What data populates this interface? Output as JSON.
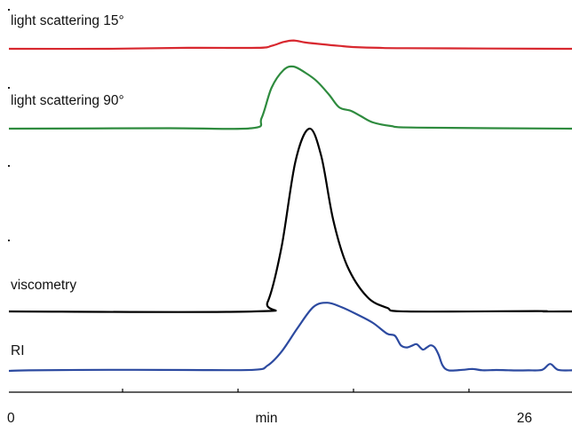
{
  "chart_data": {
    "type": "line",
    "title": "",
    "xlabel": "min",
    "ylabel": "",
    "xlim": [
      0,
      28.3
    ],
    "x_ticks": [
      {
        "value": 0,
        "label": "0"
      },
      {
        "value": 26,
        "label": "26"
      }
    ],
    "grid": false,
    "legend": "none",
    "series": [
      {
        "name": "light scattering 15°",
        "color": "#d8282f",
        "points": [
          [
            0,
            0
          ],
          [
            5,
            0
          ],
          [
            9,
            0.02
          ],
          [
            12.5,
            0.02
          ],
          [
            13.2,
            0.06
          ],
          [
            13.8,
            0.14
          ],
          [
            14.3,
            0.17
          ],
          [
            14.9,
            0.13
          ],
          [
            15.8,
            0.09
          ],
          [
            16.6,
            0.06
          ],
          [
            17.4,
            0.035
          ],
          [
            18.6,
            0.02
          ],
          [
            20,
            0.012
          ],
          [
            28.3,
            0
          ]
        ]
      },
      {
        "name": "light scattering 90°",
        "color": "#2e8b3e",
        "points": [
          [
            0,
            0
          ],
          [
            8,
            0.005
          ],
          [
            12.2,
            0.005
          ],
          [
            12.7,
            0.12
          ],
          [
            13.2,
            0.46
          ],
          [
            13.8,
            0.66
          ],
          [
            14.3,
            0.7
          ],
          [
            14.9,
            0.63
          ],
          [
            15.5,
            0.53
          ],
          [
            16.1,
            0.38
          ],
          [
            16.6,
            0.24
          ],
          [
            17.2,
            0.2
          ],
          [
            17.7,
            0.14
          ],
          [
            18.3,
            0.07
          ],
          [
            19.2,
            0.03
          ],
          [
            20.5,
            0.012
          ],
          [
            28.3,
            0
          ]
        ]
      },
      {
        "name": "viscometry",
        "color": "#000000",
        "points": [
          [
            0,
            0
          ],
          [
            12.3,
            0
          ],
          [
            13.0,
            0.05
          ],
          [
            13.7,
            0.35
          ],
          [
            14.4,
            0.82
          ],
          [
            15.1,
            1
          ],
          [
            15.7,
            0.85
          ],
          [
            16.3,
            0.5
          ],
          [
            17,
            0.25
          ],
          [
            18,
            0.08
          ],
          [
            19,
            0.02
          ],
          [
            20,
            0
          ],
          [
            26.5,
            0.002
          ],
          [
            26.9,
            0
          ],
          [
            28.3,
            0
          ]
        ]
      },
      {
        "name": "RI",
        "color": "#2c4aa0",
        "points": [
          [
            0,
            0
          ],
          [
            1,
            0.005
          ],
          [
            5,
            0.01
          ],
          [
            9,
            0.008
          ],
          [
            12.3,
            0.01
          ],
          [
            13,
            0.05
          ],
          [
            13.7,
            0.18
          ],
          [
            14.5,
            0.4
          ],
          [
            15.3,
            0.6
          ],
          [
            16,
            0.64
          ],
          [
            16.7,
            0.6
          ],
          [
            17.5,
            0.53
          ],
          [
            18.3,
            0.45
          ],
          [
            19,
            0.35
          ],
          [
            19.4,
            0.33
          ],
          [
            19.7,
            0.24
          ],
          [
            20,
            0.22
          ],
          [
            20.3,
            0.24
          ],
          [
            20.5,
            0.25
          ],
          [
            20.8,
            0.2
          ],
          [
            21,
            0.22
          ],
          [
            21.2,
            0.24
          ],
          [
            21.4,
            0.22
          ],
          [
            21.6,
            0.15
          ],
          [
            21.8,
            0.05
          ],
          [
            22.1,
            0.005
          ],
          [
            22.8,
            0.01
          ],
          [
            23.3,
            0.018
          ],
          [
            23.8,
            0.006
          ],
          [
            24.5,
            0.008
          ],
          [
            25.1,
            0.006
          ],
          [
            25.5,
            0.004
          ],
          [
            26.1,
            0.005
          ],
          [
            26.8,
            0.01
          ],
          [
            27.2,
            0.065
          ],
          [
            27.6,
            0.01
          ],
          [
            28.3,
            0.005
          ]
        ]
      }
    ]
  }
}
